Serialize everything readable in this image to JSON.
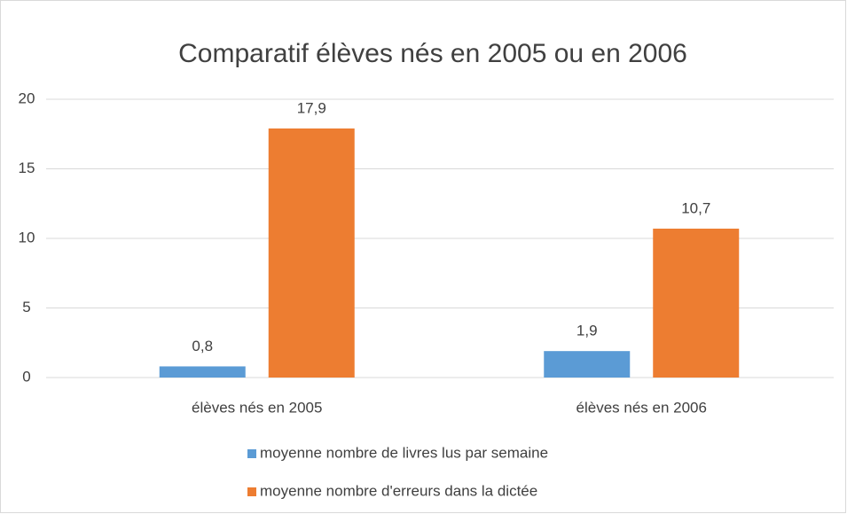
{
  "chart_data": {
    "type": "bar",
    "title": "Comparatif élèves nés en 2005 ou en 2006",
    "categories": [
      "élèves nés en 2005",
      "élèves nés en 2006"
    ],
    "series": [
      {
        "name": "moyenne nombre de livres lus par semaine",
        "color": "#5b9bd5",
        "values": [
          0.8,
          1.9
        ],
        "value_labels": [
          "0,8",
          "1,9"
        ]
      },
      {
        "name": "moyenne nombre d'erreurs dans la dictée",
        "color": "#ed7d31",
        "values": [
          17.9,
          10.7
        ],
        "value_labels": [
          "17,9",
          "10,7"
        ]
      }
    ],
    "ylim": [
      0,
      20
    ],
    "yticks": [
      0,
      5,
      10,
      15,
      20
    ],
    "grid": true,
    "legend": "bottom"
  }
}
